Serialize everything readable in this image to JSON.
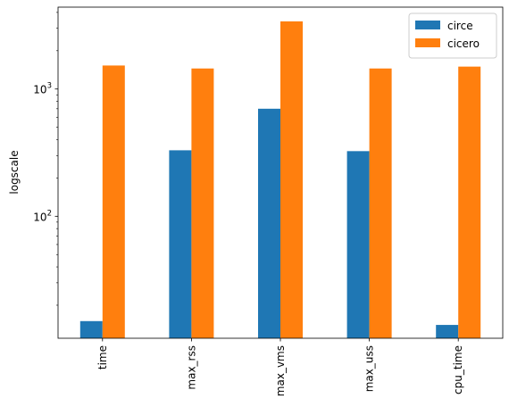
{
  "chart_data": {
    "type": "bar",
    "title": "",
    "xlabel": "",
    "ylabel": "logscale",
    "yscale": "log",
    "ylim": [
      11,
      4400
    ],
    "categories": [
      "time",
      "max_rss",
      "max_vms",
      "max_uss",
      "cpu_time"
    ],
    "yticks": [
      {
        "value": 100,
        "base": "10",
        "exp": "2"
      },
      {
        "value": 1000,
        "base": "10",
        "exp": "3"
      }
    ],
    "series": [
      {
        "name": "circe",
        "color": "#1f77b4",
        "values": [
          15,
          330,
          700,
          325,
          14
        ]
      },
      {
        "name": "cicero",
        "color": "#ff7f0e",
        "values": [
          1530,
          1450,
          3400,
          1450,
          1500
        ]
      }
    ],
    "legend": {
      "position": "top-right"
    },
    "grid": false
  }
}
